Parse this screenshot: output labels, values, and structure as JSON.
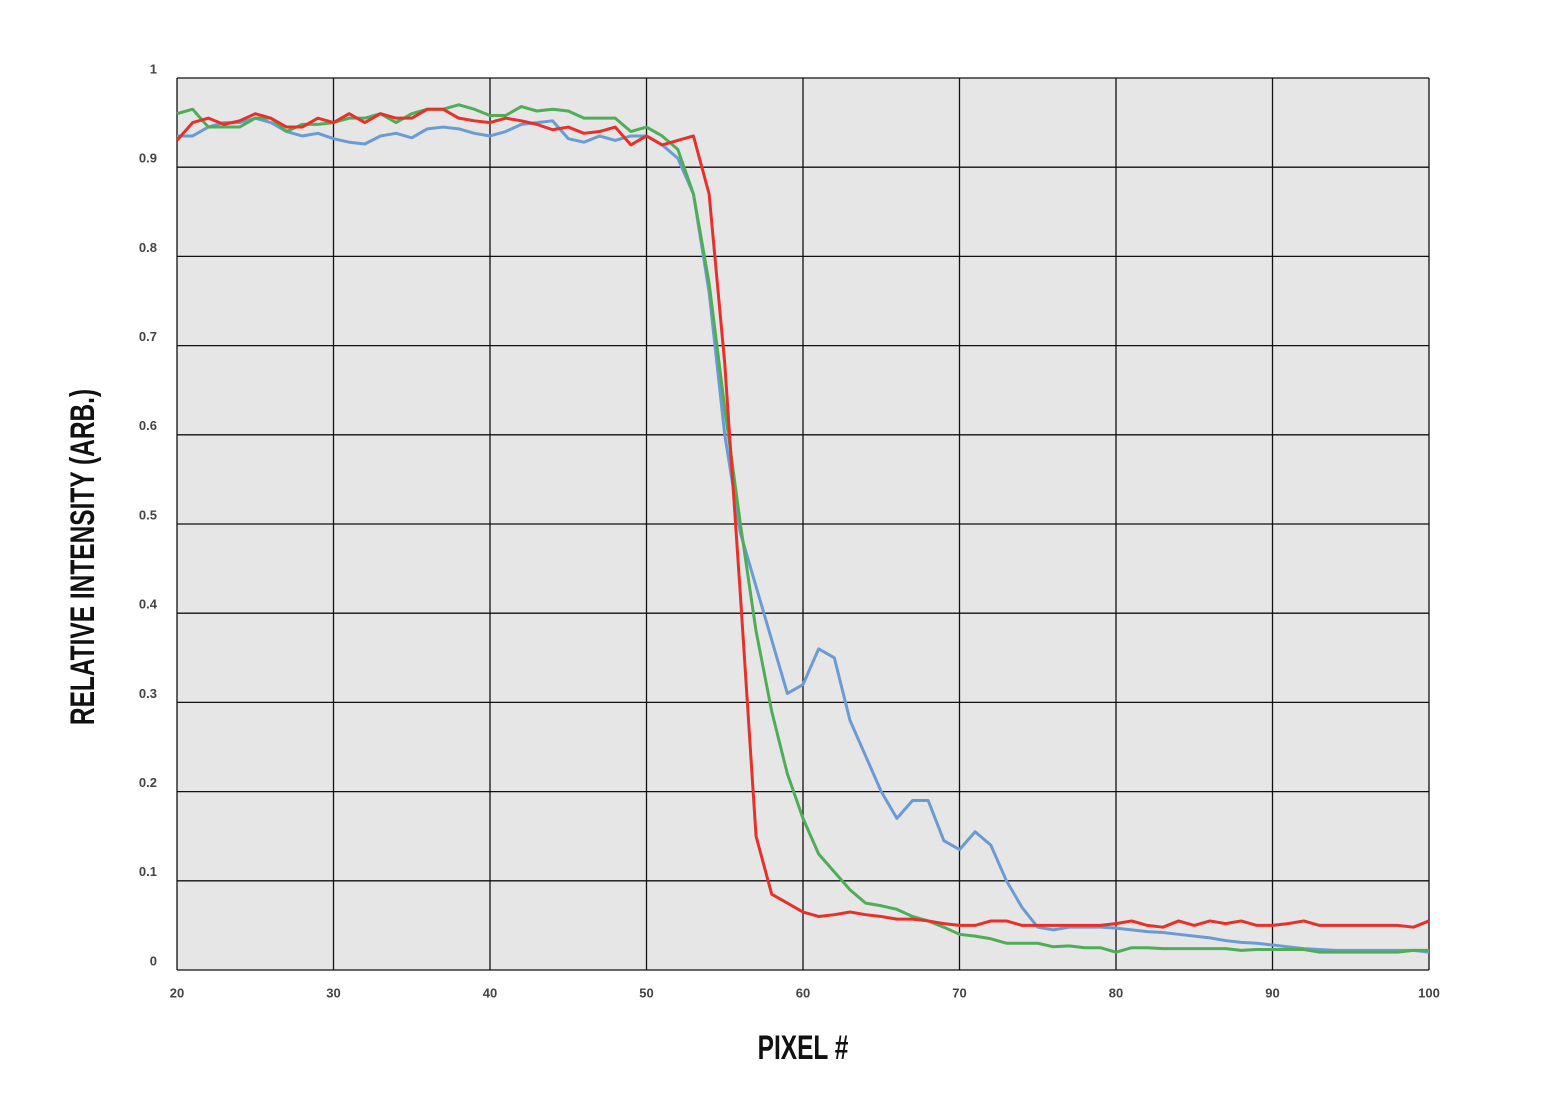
{
  "chart_data": {
    "type": "line",
    "xlabel": "PIXEL #",
    "ylabel": "RELATIVE INTENSITY (ARB.)",
    "x": [
      20,
      21,
      22,
      23,
      24,
      25,
      26,
      27,
      28,
      29,
      30,
      31,
      32,
      33,
      34,
      35,
      36,
      37,
      38,
      39,
      40,
      41,
      42,
      43,
      44,
      45,
      46,
      47,
      48,
      49,
      50,
      51,
      52,
      53,
      54,
      55,
      56,
      57,
      58,
      59,
      60,
      61,
      62,
      63,
      64,
      65,
      66,
      67,
      68,
      69,
      70,
      71,
      72,
      73,
      74,
      75,
      76,
      77,
      78,
      79,
      80,
      81,
      82,
      83,
      84,
      85,
      86,
      87,
      88,
      89,
      90,
      91,
      92,
      93,
      94,
      95,
      96,
      97,
      98,
      99,
      100
    ],
    "series": [
      {
        "color": "#6a9bd4",
        "values": [
          0.935,
          0.935,
          0.945,
          0.95,
          0.95,
          0.955,
          0.95,
          0.94,
          0.935,
          0.938,
          0.932,
          0.928,
          0.926,
          0.935,
          0.938,
          0.933,
          0.943,
          0.945,
          0.943,
          0.938,
          0.935,
          0.94,
          0.948,
          0.95,
          0.952,
          0.932,
          0.928,
          0.935,
          0.93,
          0.935,
          0.935,
          0.925,
          0.91,
          0.87,
          0.76,
          0.6,
          0.49,
          0.43,
          0.37,
          0.31,
          0.32,
          0.36,
          0.35,
          0.28,
          0.24,
          0.2,
          0.17,
          0.19,
          0.19,
          0.145,
          0.135,
          0.155,
          0.14,
          0.1,
          0.07,
          0.048,
          0.045,
          0.048,
          0.048,
          0.048,
          0.047,
          0.045,
          0.043,
          0.042,
          0.04,
          0.038,
          0.036,
          0.033,
          0.031,
          0.03,
          0.028,
          0.026,
          0.024,
          0.023,
          0.022,
          0.022,
          0.022,
          0.022,
          0.022,
          0.022,
          0.02
        ]
      },
      {
        "color": "#4fad56",
        "values": [
          0.96,
          0.965,
          0.945,
          0.945,
          0.945,
          0.955,
          0.955,
          0.94,
          0.948,
          0.948,
          0.95,
          0.955,
          0.955,
          0.96,
          0.95,
          0.96,
          0.965,
          0.965,
          0.97,
          0.965,
          0.958,
          0.958,
          0.968,
          0.963,
          0.965,
          0.963,
          0.955,
          0.955,
          0.955,
          0.94,
          0.945,
          0.935,
          0.92,
          0.87,
          0.77,
          0.63,
          0.5,
          0.38,
          0.29,
          0.22,
          0.17,
          0.13,
          0.11,
          0.09,
          0.075,
          0.072,
          0.068,
          0.06,
          0.055,
          0.048,
          0.04,
          0.038,
          0.035,
          0.03,
          0.03,
          0.03,
          0.026,
          0.027,
          0.025,
          0.025,
          0.02,
          0.025,
          0.025,
          0.024,
          0.024,
          0.024,
          0.024,
          0.024,
          0.022,
          0.023,
          0.023,
          0.023,
          0.023,
          0.02,
          0.02,
          0.02,
          0.02,
          0.02,
          0.02,
          0.022,
          0.022
        ]
      },
      {
        "color": "#e8302a",
        "values": [
          0.93,
          0.95,
          0.955,
          0.948,
          0.952,
          0.96,
          0.955,
          0.945,
          0.945,
          0.955,
          0.95,
          0.96,
          0.95,
          0.96,
          0.955,
          0.955,
          0.965,
          0.965,
          0.955,
          0.952,
          0.95,
          0.955,
          0.952,
          0.948,
          0.942,
          0.945,
          0.938,
          0.94,
          0.945,
          0.925,
          0.935,
          0.925,
          0.93,
          0.935,
          0.87,
          0.68,
          0.42,
          0.15,
          0.085,
          0.075,
          0.065,
          0.06,
          0.062,
          0.065,
          0.062,
          0.06,
          0.057,
          0.057,
          0.055,
          0.052,
          0.05,
          0.05,
          0.055,
          0.055,
          0.05,
          0.05,
          0.05,
          0.05,
          0.05,
          0.05,
          0.052,
          0.055,
          0.05,
          0.048,
          0.055,
          0.05,
          0.055,
          0.052,
          0.055,
          0.05,
          0.05,
          0.052,
          0.055,
          0.05,
          0.05,
          0.05,
          0.05,
          0.05,
          0.05,
          0.048,
          0.055
        ]
      }
    ],
    "xlim": [
      20,
      100
    ],
    "xticks": [
      20,
      30,
      40,
      50,
      60,
      70,
      80,
      90,
      100
    ],
    "ylim": [
      0,
      1
    ],
    "yticks": [
      0,
      0.1,
      0.2,
      0.3,
      0.4,
      0.5,
      0.6,
      0.7,
      0.8,
      0.9,
      1
    ],
    "grid": true
  }
}
